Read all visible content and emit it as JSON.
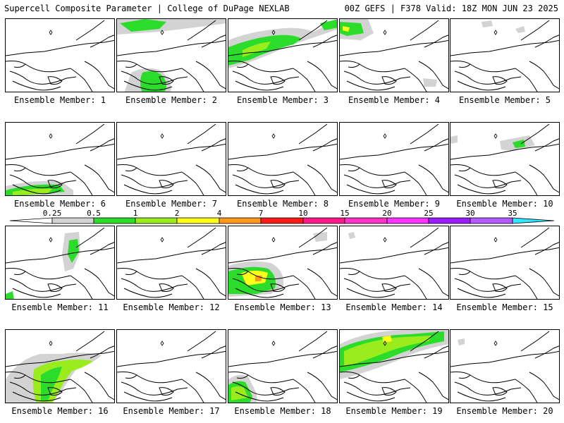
{
  "header": {
    "left": "Supercell Composite Parameter | College of DuPage NEXLAB",
    "right": "00Z GEFS | F378 Valid: 18Z MON JUN 23 2025"
  },
  "colorbar": {
    "ticks": [
      "0.25",
      "0.5",
      "1",
      "2",
      "4",
      "7",
      "10",
      "15",
      "20",
      "25",
      "30",
      "35"
    ],
    "colors": [
      "#d3d3d3",
      "#2bdc2b",
      "#9aec1c",
      "#ffff1a",
      "#ff9a1c",
      "#ff1a1a",
      "#ff1a8c",
      "#ff33c8",
      "#ff33ff",
      "#9a1cff",
      "#b55aff",
      "#33e6ff"
    ]
  },
  "members": [
    {
      "label": "Ensemble Member: 1"
    },
    {
      "label": "Ensemble Member: 2"
    },
    {
      "label": "Ensemble Member: 3"
    },
    {
      "label": "Ensemble Member: 4"
    },
    {
      "label": "Ensemble Member: 5"
    },
    {
      "label": "Ensemble Member: 6"
    },
    {
      "label": "Ensemble Member: 7"
    },
    {
      "label": "Ensemble Member: 8"
    },
    {
      "label": "Ensemble Member: 9"
    },
    {
      "label": "Ensemble Member: 10"
    },
    {
      "label": "Ensemble Member: 11"
    },
    {
      "label": "Ensemble Member: 12"
    },
    {
      "label": "Ensemble Member: 13"
    },
    {
      "label": "Ensemble Member: 14"
    },
    {
      "label": "Ensemble Member: 15"
    },
    {
      "label": "Ensemble Member: 16"
    },
    {
      "label": "Ensemble Member: 17"
    },
    {
      "label": "Ensemble Member: 18"
    },
    {
      "label": "Ensemble Member: 19"
    },
    {
      "label": "Ensemble Member: 20"
    }
  ]
}
